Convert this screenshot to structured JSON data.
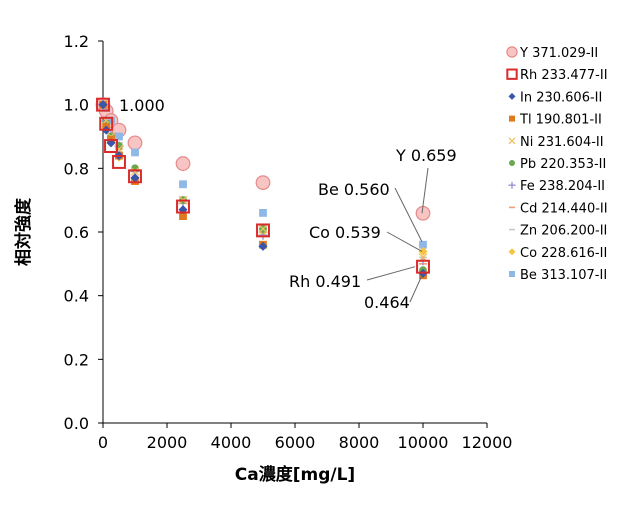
{
  "chart_data": {
    "type": "scatter",
    "xlabel": "Ca濃度[mg/L]",
    "ylabel": "相対強度",
    "xlim": [
      0,
      12000
    ],
    "ylim": [
      0,
      1.2
    ],
    "x_ticks": [
      "0",
      "2000",
      "4000",
      "6000",
      "8000",
      "10000",
      "12000"
    ],
    "y_ticks": [
      "0.0",
      "0.2",
      "0.4",
      "0.6",
      "0.8",
      "1.0",
      "1.2"
    ],
    "grid": false,
    "legend_position": "right",
    "x": [
      0,
      100,
      250,
      500,
      1000,
      2500,
      5000,
      10000
    ],
    "series": [
      {
        "name": "Y 371.029-II",
        "marker": "circle-open",
        "color": "#f4a6a6",
        "values": [
          1.0,
          0.98,
          0.95,
          0.92,
          0.88,
          0.815,
          0.755,
          0.659
        ]
      },
      {
        "name": "Rh 233.477-II",
        "marker": "square-open",
        "color": "#d92b2b",
        "values": [
          1.0,
          0.94,
          0.87,
          0.82,
          0.775,
          0.68,
          0.605,
          0.491
        ]
      },
      {
        "name": "In 230.606-II",
        "marker": "diamond",
        "color": "#3a56a8",
        "values": [
          1.0,
          0.92,
          0.88,
          0.84,
          0.77,
          0.67,
          0.555,
          0.47
        ]
      },
      {
        "name": "Tl 190.801-II",
        "marker": "square",
        "color": "#e07a1f",
        "values": [
          1.0,
          0.93,
          0.89,
          0.84,
          0.76,
          0.65,
          0.56,
          0.464
        ]
      },
      {
        "name": "Ni 231.604-II",
        "marker": "x",
        "color": "#f0c060",
        "values": [
          1.0,
          0.95,
          0.9,
          0.86,
          0.79,
          0.7,
          0.61,
          0.52
        ]
      },
      {
        "name": "Pb 220.353-II",
        "marker": "circle",
        "color": "#6aa84f",
        "values": [
          1.0,
          0.94,
          0.9,
          0.87,
          0.8,
          0.7,
          0.61,
          0.48
        ]
      },
      {
        "name": "Fe 238.204-II",
        "marker": "plus",
        "color": "#9a8fd0",
        "values": [
          1.0,
          0.95,
          0.91,
          0.87,
          0.79,
          0.69,
          0.59,
          0.51
        ]
      },
      {
        "name": "Cd 214.440-II",
        "marker": "dash",
        "color": "#f0a070",
        "values": [
          1.0,
          0.95,
          0.91,
          0.86,
          0.79,
          0.69,
          0.6,
          0.5
        ]
      },
      {
        "name": "Zn 206.200-II",
        "marker": "dash",
        "color": "#c8c8c8",
        "values": [
          1.0,
          0.96,
          0.92,
          0.88,
          0.8,
          0.71,
          0.62,
          0.52
        ]
      },
      {
        "name": "Co 228.616-II",
        "marker": "diamond",
        "color": "#f5c542",
        "values": [
          1.0,
          0.93,
          0.88,
          0.835,
          0.77,
          0.66,
          0.6,
          0.539
        ]
      },
      {
        "name": "Be 313.107-II",
        "marker": "square",
        "color": "#8fb8e6",
        "values": [
          1.0,
          0.99,
          0.95,
          0.9,
          0.85,
          0.75,
          0.66,
          0.56
        ]
      }
    ],
    "annotations": [
      {
        "text": "1.000",
        "x": 0,
        "y": 1.0
      },
      {
        "text": "Y 0.659",
        "x": 10000,
        "y": 0.659
      },
      {
        "text": "Be 0.560",
        "x": 10000,
        "y": 0.56
      },
      {
        "text": "Co 0.539",
        "x": 10000,
        "y": 0.539
      },
      {
        "text": "Rh 0.491",
        "x": 10000,
        "y": 0.491
      },
      {
        "text": "0.464",
        "x": 10000,
        "y": 0.464
      }
    ]
  }
}
